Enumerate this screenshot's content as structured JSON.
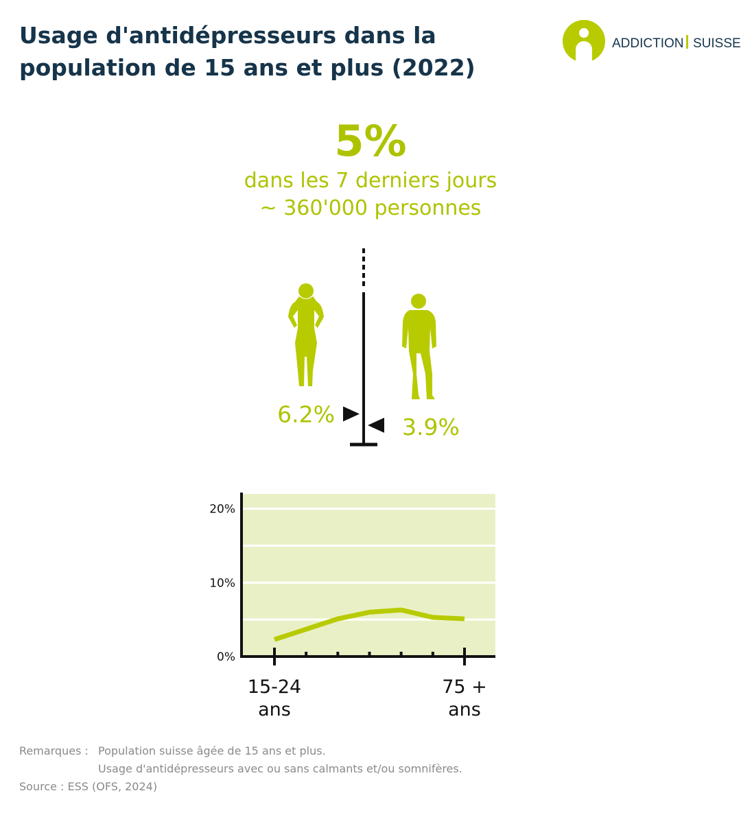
{
  "header": {
    "title": [
      "Usage d'antidépresseurs dans la",
      "population de 15 ans et plus (2022)"
    ],
    "logo": [
      "ADDICTION",
      "SUISSE"
    ]
  },
  "headline": {
    "value": "5%",
    "lines": [
      "dans les 7 derniers jours",
      "~ 360'000 personnes"
    ]
  },
  "chart_data": [
    {
      "type": "marker",
      "values": [
        6.2,
        3.9
      ],
      "value_labels": [
        "6.2%",
        "3.9%"
      ],
      "color": "#aec300"
    },
    {
      "type": "line",
      "categories": [
        "15-24 ans",
        null,
        null,
        null,
        null,
        null,
        "75 + ans"
      ],
      "values": [
        2.3,
        3.7,
        5.1,
        6.0,
        6.3,
        5.3,
        5.1
      ],
      "color": "#b7cb00",
      "background": "#eaf0c6",
      "ylim": [
        0,
        22
      ],
      "yticks": [
        {
          "value": 0,
          "label": "0%"
        },
        {
          "value": 5,
          "label": null
        },
        {
          "value": 10,
          "label": "10%"
        },
        {
          "value": 15,
          "label": null
        },
        {
          "value": 20,
          "label": "20%"
        }
      ],
      "grid": true
    }
  ],
  "notes": {
    "label": "Remarques :",
    "lines": [
      "Population suisse âgée de 15 ans et plus.",
      "Usage d'antidépresseurs avec ou sans calmants et/ou somnifères."
    ],
    "source": "Source : ESS (OFS, 2024)"
  }
}
